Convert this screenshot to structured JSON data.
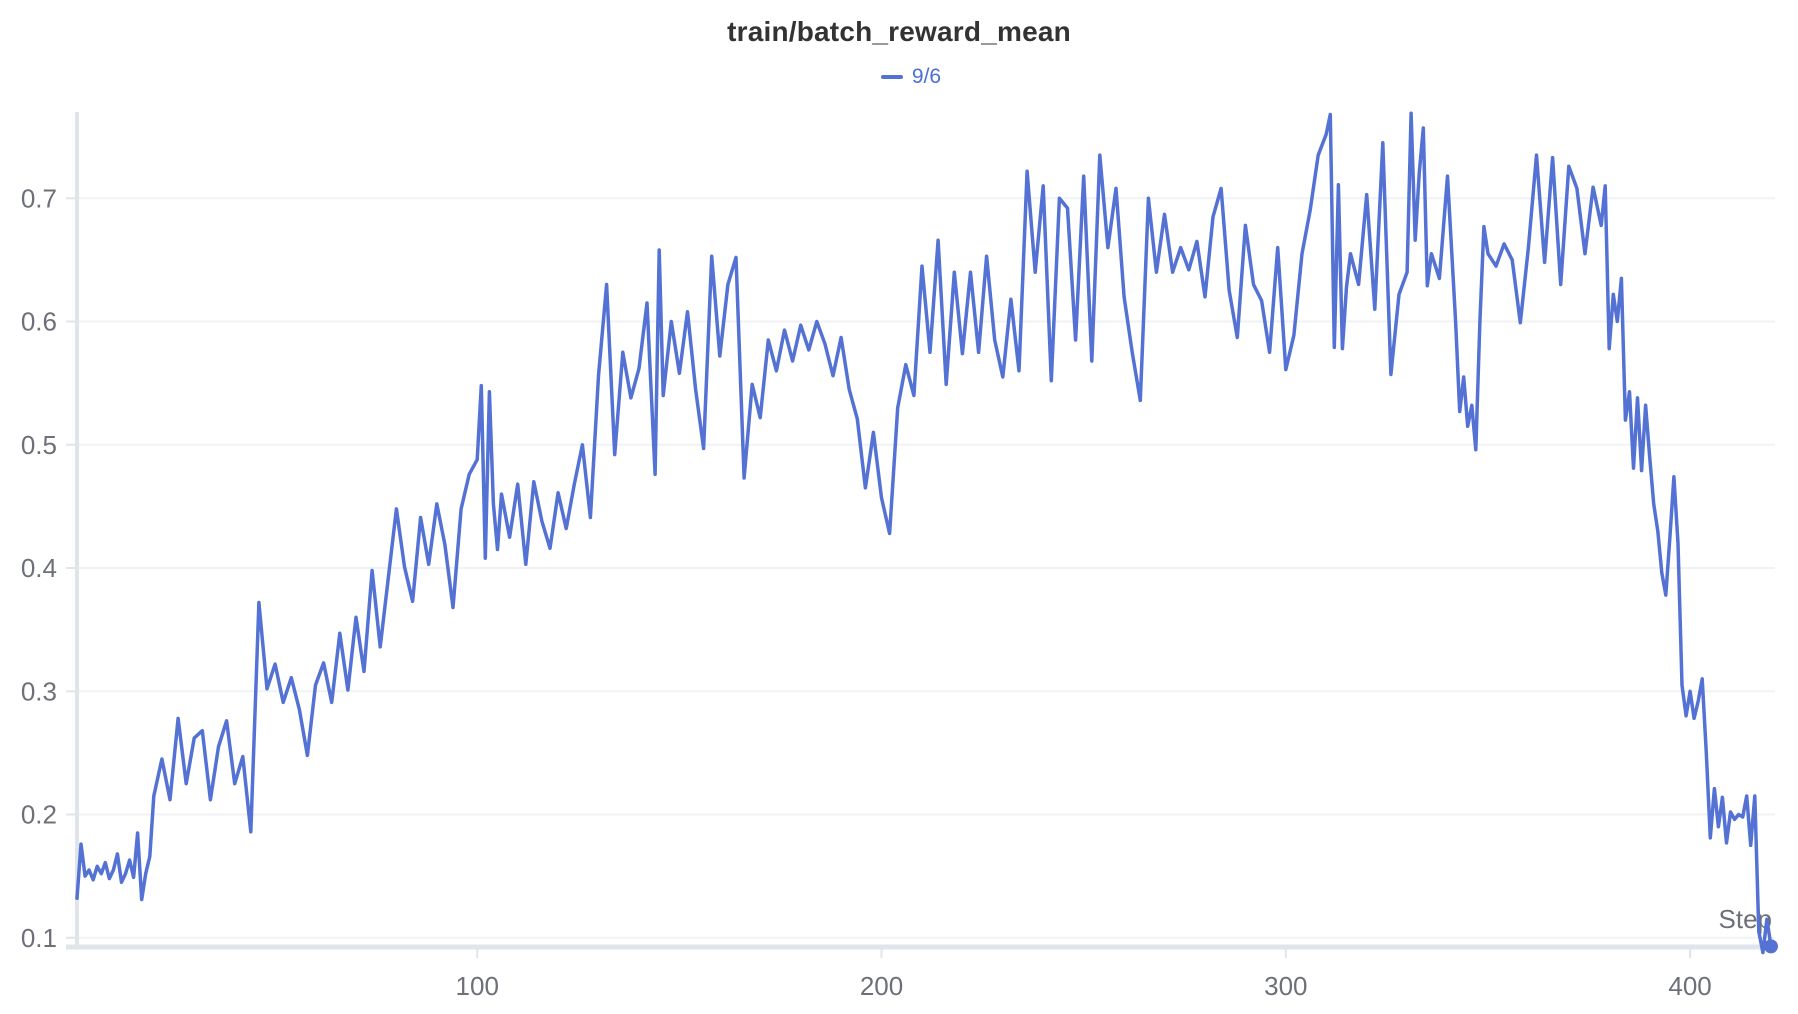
{
  "chart_data": {
    "type": "line",
    "title": "train/batch_reward_mean",
    "xlabel": "Step",
    "ylabel": "",
    "x_ticks": [
      100,
      200,
      300,
      400
    ],
    "y_ticks": [
      0.1,
      0.2,
      0.3,
      0.4,
      0.5,
      0.6,
      0.7
    ],
    "xlim": [
      1,
      421
    ],
    "ylim": [
      0.0925,
      0.77
    ],
    "grid": true,
    "legend_position": "top-center",
    "series": [
      {
        "name": "9/6",
        "end_dot": true,
        "x": [
          1,
          2,
          3,
          4,
          5,
          6,
          7,
          8,
          9,
          10,
          11,
          12,
          13,
          14,
          15,
          16,
          17,
          18,
          19,
          20,
          22,
          24,
          26,
          28,
          30,
          32,
          34,
          36,
          38,
          40,
          42,
          44,
          46,
          48,
          50,
          52,
          54,
          56,
          58,
          60,
          62,
          64,
          66,
          68,
          70,
          72,
          74,
          76,
          78,
          80,
          82,
          84,
          86,
          88,
          90,
          92,
          94,
          96,
          98,
          100,
          101,
          102,
          103,
          104,
          105,
          106,
          108,
          110,
          112,
          114,
          116,
          118,
          120,
          122,
          124,
          126,
          128,
          130,
          132,
          134,
          136,
          138,
          140,
          142,
          144,
          145,
          146,
          148,
          150,
          152,
          154,
          156,
          158,
          160,
          162,
          164,
          166,
          168,
          170,
          172,
          174,
          176,
          178,
          180,
          182,
          184,
          186,
          188,
          190,
          192,
          194,
          196,
          198,
          200,
          202,
          204,
          206,
          208,
          210,
          212,
          214,
          216,
          218,
          220,
          222,
          224,
          226,
          228,
          230,
          232,
          234,
          236,
          238,
          240,
          242,
          244,
          246,
          248,
          250,
          252,
          254,
          256,
          258,
          260,
          262,
          264,
          266,
          268,
          270,
          272,
          274,
          276,
          278,
          280,
          282,
          284,
          286,
          288,
          290,
          292,
          294,
          296,
          298,
          300,
          302,
          304,
          306,
          308,
          310,
          311,
          312,
          313,
          314,
          315,
          316,
          318,
          320,
          322,
          324,
          326,
          328,
          330,
          331,
          332,
          333,
          334,
          335,
          336,
          338,
          340,
          342,
          343,
          344,
          345,
          346,
          347,
          348,
          349,
          350,
          352,
          354,
          356,
          358,
          360,
          362,
          364,
          366,
          368,
          370,
          372,
          374,
          376,
          378,
          379,
          380,
          381,
          382,
          383,
          384,
          385,
          386,
          387,
          388,
          389,
          390,
          391,
          392,
          393,
          394,
          395,
          396,
          397,
          398,
          399,
          400,
          401,
          402,
          403,
          404,
          405,
          406,
          407,
          408,
          409,
          410,
          411,
          412,
          413,
          414,
          415,
          416,
          417,
          418,
          419,
          420
        ],
        "y": [
          0.132,
          0.176,
          0.15,
          0.155,
          0.147,
          0.158,
          0.152,
          0.161,
          0.148,
          0.155,
          0.168,
          0.145,
          0.152,
          0.163,
          0.149,
          0.185,
          0.131,
          0.152,
          0.166,
          0.215,
          0.245,
          0.212,
          0.278,
          0.225,
          0.262,
          0.268,
          0.212,
          0.255,
          0.276,
          0.225,
          0.247,
          0.186,
          0.372,
          0.302,
          0.322,
          0.291,
          0.311,
          0.285,
          0.248,
          0.305,
          0.323,
          0.291,
          0.347,
          0.301,
          0.36,
          0.316,
          0.398,
          0.336,
          0.392,
          0.448,
          0.401,
          0.373,
          0.441,
          0.403,
          0.452,
          0.419,
          0.368,
          0.448,
          0.476,
          0.488,
          0.548,
          0.408,
          0.543,
          0.452,
          0.415,
          0.46,
          0.425,
          0.468,
          0.403,
          0.47,
          0.438,
          0.416,
          0.461,
          0.432,
          0.468,
          0.5,
          0.441,
          0.556,
          0.63,
          0.492,
          0.575,
          0.538,
          0.562,
          0.615,
          0.476,
          0.658,
          0.54,
          0.6,
          0.558,
          0.608,
          0.545,
          0.497,
          0.653,
          0.572,
          0.63,
          0.652,
          0.473,
          0.549,
          0.522,
          0.585,
          0.56,
          0.593,
          0.568,
          0.597,
          0.577,
          0.6,
          0.582,
          0.556,
          0.587,
          0.545,
          0.521,
          0.465,
          0.51,
          0.457,
          0.428,
          0.53,
          0.565,
          0.54,
          0.645,
          0.575,
          0.666,
          0.549,
          0.64,
          0.574,
          0.64,
          0.575,
          0.653,
          0.585,
          0.555,
          0.618,
          0.56,
          0.722,
          0.64,
          0.71,
          0.552,
          0.7,
          0.692,
          0.585,
          0.718,
          0.568,
          0.735,
          0.66,
          0.708,
          0.62,
          0.575,
          0.536,
          0.7,
          0.64,
          0.687,
          0.64,
          0.66,
          0.642,
          0.665,
          0.62,
          0.685,
          0.708,
          0.625,
          0.587,
          0.678,
          0.63,
          0.617,
          0.575,
          0.66,
          0.561,
          0.589,
          0.655,
          0.69,
          0.735,
          0.752,
          0.768,
          0.579,
          0.711,
          0.578,
          0.628,
          0.655,
          0.63,
          0.703,
          0.61,
          0.745,
          0.557,
          0.622,
          0.64,
          0.769,
          0.666,
          0.72,
          0.757,
          0.629,
          0.655,
          0.635,
          0.718,
          0.6,
          0.527,
          0.555,
          0.515,
          0.532,
          0.496,
          0.6,
          0.677,
          0.655,
          0.645,
          0.663,
          0.65,
          0.599,
          0.66,
          0.735,
          0.648,
          0.733,
          0.63,
          0.726,
          0.708,
          0.655,
          0.709,
          0.678,
          0.71,
          0.578,
          0.622,
          0.6,
          0.635,
          0.52,
          0.543,
          0.481,
          0.538,
          0.479,
          0.532,
          0.49,
          0.452,
          0.43,
          0.396,
          0.378,
          0.425,
          0.474,
          0.42,
          0.305,
          0.28,
          0.3,
          0.278,
          0.292,
          0.31,
          0.25,
          0.181,
          0.221,
          0.19,
          0.214,
          0.177,
          0.202,
          0.196,
          0.2,
          0.198,
          0.215,
          0.175,
          0.215,
          0.105,
          0.088,
          0.115,
          0.093
        ]
      }
    ]
  },
  "colors": {
    "line": "#5472d3",
    "legend_text": "#4a6fd4",
    "title": "#333333",
    "axis": "#e0e4eb",
    "grid": "#f0f2f6",
    "tick_label": "#6e7079",
    "axis_name": "#6e7079",
    "background": "#ffffff"
  }
}
